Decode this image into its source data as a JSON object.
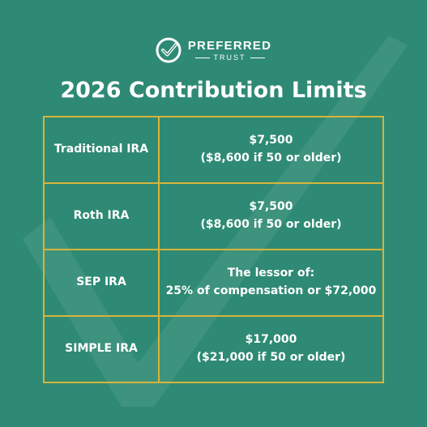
{
  "brand": {
    "name": "PREFERRED",
    "sub": "TRUST",
    "logo_icon": "check-circle-icon"
  },
  "title": "2026 Contribution Limits",
  "colors": {
    "background": "#2e8a74",
    "border": "#d8b43a",
    "text": "#ffffff"
  },
  "rows": [
    {
      "label": "Traditional IRA",
      "value_line1": "$7,500",
      "value_line2": "($8,600 if 50 or older)"
    },
    {
      "label": "Roth IRA",
      "value_line1": "$7,500",
      "value_line2": "($8,600 if 50 or older)"
    },
    {
      "label": "SEP IRA",
      "value_line1": "The lessor of:",
      "value_line2": "25% of compensation or $72,000"
    },
    {
      "label": "SIMPLE IRA",
      "value_line1": "$17,000",
      "value_line2": "($21,000 if 50 or older)"
    }
  ]
}
